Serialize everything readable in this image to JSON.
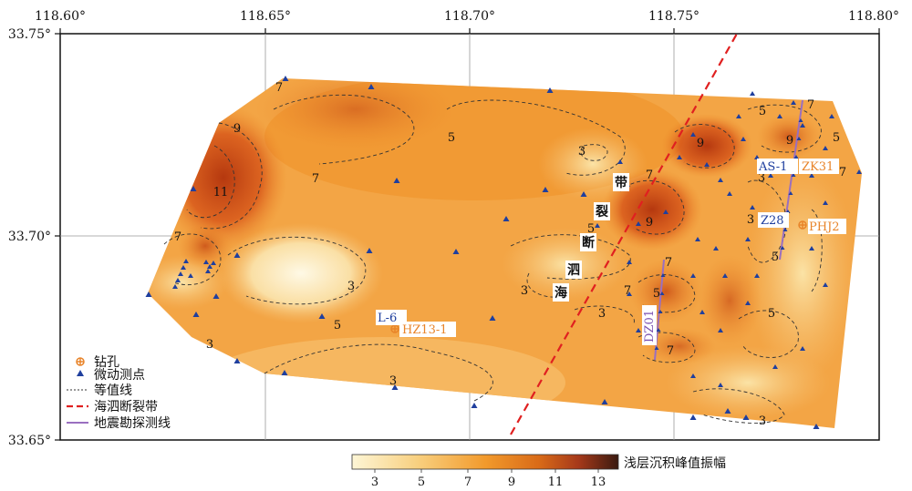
{
  "axes": {
    "x_ticks": [
      "118.60°",
      "118.65°",
      "118.70°",
      "118.75°",
      "118.80°"
    ],
    "y_ticks": [
      "33.75°",
      "33.70°",
      "33.65°"
    ]
  },
  "contour_labels": [
    "7",
    "9",
    "11",
    "7",
    "7",
    "9",
    "5",
    "3",
    "7",
    "9",
    "5",
    "9",
    "7",
    "5",
    "7",
    "3",
    "3",
    "5",
    "3",
    "7",
    "3",
    "5",
    "7",
    "3",
    "5",
    "5",
    "7",
    "5"
  ],
  "fault_zone_chars": [
    "带",
    "裂",
    "断",
    "泗",
    "海"
  ],
  "stations": {
    "l6": "L-6",
    "hz13": "HZ13-1",
    "dz01": "DZ01",
    "as1": "AS-1",
    "zk31": "ZK31",
    "z28": "Z28",
    "phj2": "PHJ2"
  },
  "legend": {
    "borehole": "钻孔",
    "micro_station": "微动测点",
    "isoline": "等值线",
    "fault": "海泗断裂带",
    "seismic_line": "地震勘探测线"
  },
  "colorbar": {
    "title": "浅层沉积峰值振幅",
    "ticks": [
      "3",
      "5",
      "7",
      "9",
      "11",
      "13"
    ]
  },
  "colors": {
    "low": "#fdf3c8",
    "mid": "#f39a2e",
    "high": "#b23a12",
    "station_marker": "#1f3f9e",
    "fault_line": "#e02020",
    "seismic_line": "#9a6fc0",
    "borehole": "#e8842a"
  }
}
